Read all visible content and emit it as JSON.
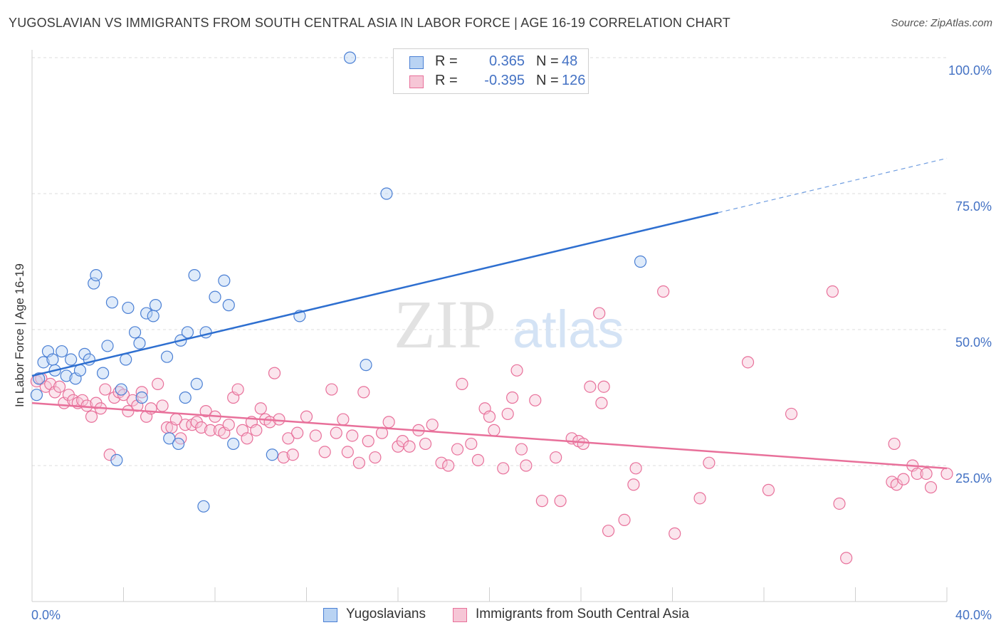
{
  "title": "YUGOSLAVIAN VS IMMIGRANTS FROM SOUTH CENTRAL ASIA IN LABOR FORCE | AGE 16-19 CORRELATION CHART",
  "source": "Source: ZipAtlas.com",
  "watermark": {
    "zip": "ZIP",
    "atlas": "atlas"
  },
  "colors": {
    "blue": "#4a7fd4",
    "blue_fill": "#b9d3f3",
    "pink": "#e8709a",
    "pink_fill": "#f6c6d6",
    "axis_label": "#4472c4"
  },
  "stats": [
    {
      "r_label": "R =",
      "r": "0.365",
      "n_label": "N =",
      "n": "48"
    },
    {
      "r_label": "R =",
      "r": "-0.395",
      "n_label": "N =",
      "n": "126"
    }
  ],
  "legend": [
    "Yugoslavians",
    "Immigrants from South Central Asia"
  ],
  "chart_data": {
    "type": "scatter",
    "ylabel": "In Labor Force | Age 16-19",
    "xlim": [
      0,
      40
    ],
    "ylim": [
      0,
      105
    ],
    "x_tick_labels": [
      "0.0%",
      "40.0%"
    ],
    "y_tick_labels": [
      "25.0%",
      "50.0%",
      "75.0%",
      "100.0%"
    ],
    "y_ticks": [
      25,
      50,
      75,
      100
    ],
    "grid": true,
    "series": [
      {
        "name": "Yugoslavians",
        "points": [
          [
            0.2,
            38.0
          ],
          [
            0.3,
            41.0
          ],
          [
            0.5,
            44.0
          ],
          [
            0.7,
            46.0
          ],
          [
            0.9,
            44.5
          ],
          [
            1.0,
            42.5
          ],
          [
            1.3,
            46.0
          ],
          [
            1.5,
            41.5
          ],
          [
            1.7,
            44.5
          ],
          [
            1.9,
            41.0
          ],
          [
            2.1,
            42.5
          ],
          [
            2.3,
            45.5
          ],
          [
            2.5,
            44.5
          ],
          [
            2.7,
            58.5
          ],
          [
            2.8,
            60.0
          ],
          [
            3.1,
            42.0
          ],
          [
            3.3,
            47.0
          ],
          [
            3.5,
            55.0
          ],
          [
            3.7,
            26.0
          ],
          [
            3.9,
            39.0
          ],
          [
            4.1,
            44.5
          ],
          [
            4.2,
            54.0
          ],
          [
            4.5,
            49.5
          ],
          [
            4.7,
            47.5
          ],
          [
            4.8,
            37.5
          ],
          [
            5.0,
            53.0
          ],
          [
            5.3,
            52.5
          ],
          [
            5.4,
            54.5
          ],
          [
            5.9,
            45.0
          ],
          [
            6.0,
            30.0
          ],
          [
            6.4,
            29.0
          ],
          [
            6.5,
            48.0
          ],
          [
            6.7,
            37.5
          ],
          [
            6.8,
            49.5
          ],
          [
            7.1,
            60.0
          ],
          [
            7.2,
            40.0
          ],
          [
            7.5,
            17.5
          ],
          [
            7.6,
            49.5
          ],
          [
            8.0,
            56.0
          ],
          [
            8.4,
            59.0
          ],
          [
            8.6,
            54.5
          ],
          [
            8.8,
            29.0
          ],
          [
            10.5,
            27.0
          ],
          [
            11.7,
            52.5
          ],
          [
            13.9,
            100.0
          ],
          [
            14.6,
            43.5
          ],
          [
            15.5,
            75.0
          ],
          [
            26.6,
            62.5
          ]
        ]
      },
      {
        "name": "Immigrants from South Central Asia",
        "points": [
          [
            0.2,
            40.5
          ],
          [
            0.4,
            41.0
          ],
          [
            0.6,
            39.5
          ],
          [
            0.8,
            40.0
          ],
          [
            1.0,
            38.5
          ],
          [
            1.2,
            39.5
          ],
          [
            1.4,
            36.5
          ],
          [
            1.6,
            38.0
          ],
          [
            1.8,
            37.0
          ],
          [
            2.0,
            36.5
          ],
          [
            2.2,
            37.0
          ],
          [
            2.4,
            36.0
          ],
          [
            2.6,
            34.0
          ],
          [
            2.8,
            36.5
          ],
          [
            3.0,
            35.5
          ],
          [
            3.2,
            39.0
          ],
          [
            3.4,
            27.0
          ],
          [
            3.6,
            37.5
          ],
          [
            3.8,
            38.5
          ],
          [
            4.0,
            38.0
          ],
          [
            4.2,
            35.0
          ],
          [
            4.4,
            37.0
          ],
          [
            4.6,
            36.0
          ],
          [
            4.8,
            38.5
          ],
          [
            5.0,
            34.0
          ],
          [
            5.2,
            35.5
          ],
          [
            5.5,
            40.0
          ],
          [
            5.7,
            36.0
          ],
          [
            5.9,
            32.0
          ],
          [
            6.1,
            32.0
          ],
          [
            6.3,
            33.5
          ],
          [
            6.5,
            30.0
          ],
          [
            6.7,
            32.5
          ],
          [
            7.0,
            32.5
          ],
          [
            7.2,
            33.0
          ],
          [
            7.4,
            32.0
          ],
          [
            7.6,
            35.0
          ],
          [
            7.8,
            31.5
          ],
          [
            8.0,
            34.0
          ],
          [
            8.2,
            31.5
          ],
          [
            8.4,
            31.0
          ],
          [
            8.6,
            32.5
          ],
          [
            8.8,
            37.5
          ],
          [
            9.0,
            39.0
          ],
          [
            9.2,
            31.5
          ],
          [
            9.4,
            30.0
          ],
          [
            9.6,
            33.0
          ],
          [
            9.8,
            31.5
          ],
          [
            10.0,
            35.5
          ],
          [
            10.2,
            33.5
          ],
          [
            10.4,
            33.0
          ],
          [
            10.6,
            42.0
          ],
          [
            10.8,
            33.5
          ],
          [
            11.0,
            26.5
          ],
          [
            11.2,
            30.0
          ],
          [
            11.4,
            27.0
          ],
          [
            11.6,
            31.0
          ],
          [
            12.0,
            34.0
          ],
          [
            12.4,
            30.5
          ],
          [
            12.8,
            27.5
          ],
          [
            13.1,
            39.0
          ],
          [
            13.3,
            31.0
          ],
          [
            13.6,
            33.5
          ],
          [
            13.8,
            27.5
          ],
          [
            14.0,
            30.5
          ],
          [
            14.3,
            25.5
          ],
          [
            14.5,
            38.5
          ],
          [
            14.7,
            29.5
          ],
          [
            15.0,
            26.5
          ],
          [
            15.3,
            31.0
          ],
          [
            15.6,
            33.0
          ],
          [
            16.0,
            28.5
          ],
          [
            16.2,
            29.5
          ],
          [
            16.5,
            28.5
          ],
          [
            16.9,
            31.5
          ],
          [
            17.2,
            29.0
          ],
          [
            17.5,
            32.5
          ],
          [
            17.9,
            25.5
          ],
          [
            18.2,
            25.0
          ],
          [
            18.6,
            28.0
          ],
          [
            18.8,
            40.0
          ],
          [
            19.2,
            29.0
          ],
          [
            19.5,
            26.0
          ],
          [
            19.8,
            35.5
          ],
          [
            20.0,
            34.0
          ],
          [
            20.2,
            31.5
          ],
          [
            20.6,
            24.5
          ],
          [
            20.8,
            34.5
          ],
          [
            21.0,
            37.5
          ],
          [
            21.2,
            42.5
          ],
          [
            21.4,
            28.0
          ],
          [
            21.6,
            25.0
          ],
          [
            22.0,
            37.0
          ],
          [
            22.3,
            18.5
          ],
          [
            22.9,
            26.5
          ],
          [
            23.1,
            18.5
          ],
          [
            23.6,
            30.0
          ],
          [
            23.9,
            29.5
          ],
          [
            24.1,
            29.0
          ],
          [
            24.4,
            39.5
          ],
          [
            24.8,
            53.0
          ],
          [
            24.9,
            36.5
          ],
          [
            25.0,
            39.5
          ],
          [
            25.2,
            13.0
          ],
          [
            25.9,
            15.0
          ],
          [
            26.3,
            21.5
          ],
          [
            26.4,
            24.5
          ],
          [
            27.6,
            57.0
          ],
          [
            28.1,
            12.5
          ],
          [
            29.2,
            19.0
          ],
          [
            29.6,
            25.5
          ],
          [
            31.3,
            44.0
          ],
          [
            32.2,
            20.5
          ],
          [
            33.2,
            34.5
          ],
          [
            35.0,
            57.0
          ],
          [
            35.3,
            18.0
          ],
          [
            35.6,
            8.0
          ],
          [
            37.6,
            22.0
          ],
          [
            37.7,
            29.0
          ],
          [
            37.8,
            21.5
          ],
          [
            38.1,
            22.5
          ],
          [
            38.5,
            25.0
          ],
          [
            38.7,
            23.5
          ],
          [
            39.1,
            23.5
          ],
          [
            39.3,
            21.0
          ],
          [
            40.0,
            23.5
          ]
        ]
      }
    ],
    "trend_lines": [
      {
        "series": "Yugoslavians",
        "start": [
          0,
          41.5
        ],
        "end": [
          30,
          71.5
        ],
        "dashed_to": [
          40,
          81.5
        ]
      },
      {
        "series": "Immigrants from South Central Asia",
        "start": [
          0,
          36.5
        ],
        "end": [
          40,
          24.5
        ]
      }
    ]
  }
}
